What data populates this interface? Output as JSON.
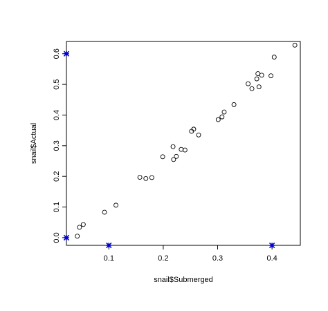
{
  "chart_data": {
    "type": "scatter",
    "title": "",
    "xlabel": "snail$Submerged",
    "ylabel": "snail$Actual",
    "xlim": [
      0.022,
      0.452
    ],
    "ylim": [
      -0.025,
      0.64
    ],
    "xticks": [
      {
        "value": 0.1,
        "label": "0.1"
      },
      {
        "value": 0.2,
        "label": "0.2"
      },
      {
        "value": 0.3,
        "label": "0.3"
      },
      {
        "value": 0.4,
        "label": "0.4"
      }
    ],
    "yticks": [
      {
        "value": 0.0,
        "label": "0.0"
      },
      {
        "value": 0.1,
        "label": "0.1"
      },
      {
        "value": 0.2,
        "label": "0.2"
      },
      {
        "value": 0.3,
        "label": "0.3"
      },
      {
        "value": 0.4,
        "label": "0.4"
      },
      {
        "value": 0.5,
        "label": "0.5"
      },
      {
        "value": 0.6,
        "label": "0.6"
      }
    ],
    "grid": false,
    "legend": false,
    "series": [
      {
        "marker": "open-circle",
        "color": "#000000",
        "points": [
          {
            "x": 0.042,
            "y": 0.005
          },
          {
            "x": 0.046,
            "y": 0.034
          },
          {
            "x": 0.053,
            "y": 0.043
          },
          {
            "x": 0.092,
            "y": 0.083
          },
          {
            "x": 0.113,
            "y": 0.106
          },
          {
            "x": 0.157,
            "y": 0.197
          },
          {
            "x": 0.168,
            "y": 0.193
          },
          {
            "x": 0.179,
            "y": 0.196
          },
          {
            "x": 0.199,
            "y": 0.264
          },
          {
            "x": 0.218,
            "y": 0.297
          },
          {
            "x": 0.219,
            "y": 0.255
          },
          {
            "x": 0.224,
            "y": 0.265
          },
          {
            "x": 0.233,
            "y": 0.288
          },
          {
            "x": 0.24,
            "y": 0.286
          },
          {
            "x": 0.252,
            "y": 0.347
          },
          {
            "x": 0.256,
            "y": 0.354
          },
          {
            "x": 0.265,
            "y": 0.335
          },
          {
            "x": 0.301,
            "y": 0.385
          },
          {
            "x": 0.308,
            "y": 0.394
          },
          {
            "x": 0.312,
            "y": 0.41
          },
          {
            "x": 0.33,
            "y": 0.434
          },
          {
            "x": 0.356,
            "y": 0.502
          },
          {
            "x": 0.363,
            "y": 0.486
          },
          {
            "x": 0.372,
            "y": 0.518
          },
          {
            "x": 0.374,
            "y": 0.535
          },
          {
            "x": 0.376,
            "y": 0.492
          },
          {
            "x": 0.381,
            "y": 0.53
          },
          {
            "x": 0.398,
            "y": 0.528
          },
          {
            "x": 0.404,
            "y": 0.589
          },
          {
            "x": 0.442,
            "y": 0.628
          }
        ]
      },
      {
        "marker": "star",
        "color": "#0000cc",
        "points": [
          {
            "x": 0.022,
            "y": 0.6
          },
          {
            "x": 0.022,
            "y": 0.0
          },
          {
            "x": 0.1,
            "y": -0.025
          },
          {
            "x": 0.4,
            "y": -0.025
          }
        ]
      }
    ]
  }
}
